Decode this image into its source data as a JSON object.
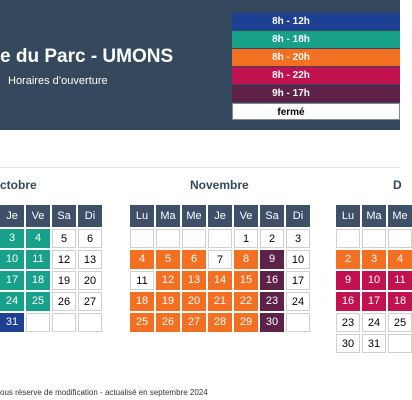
{
  "header": {
    "title": "e du Parc - UMONS",
    "subtitle": "Horaires d’ouverture"
  },
  "legend": [
    {
      "label": "8h - 12h",
      "color": "#1d3f94"
    },
    {
      "label": "8h - 18h",
      "color": "#17a08a"
    },
    {
      "label": "8h - 20h",
      "color": "#f36f21"
    },
    {
      "label": "8h - 22h",
      "color": "#c1124f"
    },
    {
      "label": "9h - 17h",
      "color": "#5e2148"
    },
    {
      "label": "fermé",
      "color": "#ffffff"
    }
  ],
  "months": [
    {
      "name": "ctobre",
      "day_headers": [
        "Je",
        "Ve",
        "Sa",
        "Di"
      ],
      "weeks": [
        [
          {
            "day": "3",
            "color": "#17a08a"
          },
          {
            "day": "4",
            "color": "#17a08a"
          },
          {
            "day": "5",
            "color": "#ffffff"
          },
          {
            "day": "6",
            "color": "#ffffff"
          }
        ],
        [
          {
            "day": "10",
            "color": "#17a08a"
          },
          {
            "day": "11",
            "color": "#17a08a"
          },
          {
            "day": "12",
            "color": "#ffffff"
          },
          {
            "day": "13",
            "color": "#ffffff"
          }
        ],
        [
          {
            "day": "17",
            "color": "#17a08a"
          },
          {
            "day": "18",
            "color": "#17a08a"
          },
          {
            "day": "19",
            "color": "#ffffff"
          },
          {
            "day": "20",
            "color": "#ffffff"
          }
        ],
        [
          {
            "day": "24",
            "color": "#17a08a"
          },
          {
            "day": "25",
            "color": "#17a08a"
          },
          {
            "day": "26",
            "color": "#ffffff"
          },
          {
            "day": "27",
            "color": "#ffffff"
          }
        ],
        [
          {
            "day": "31",
            "color": "#1d3f94"
          },
          null,
          null,
          null
        ]
      ]
    },
    {
      "name": "Novembre",
      "day_headers": [
        "Lu",
        "Ma",
        "Me",
        "Je",
        "Ve",
        "Sa",
        "Di"
      ],
      "weeks": [
        [
          null,
          null,
          null,
          null,
          {
            "day": "1",
            "color": "#ffffff"
          },
          {
            "day": "2",
            "color": "#ffffff"
          },
          {
            "day": "3",
            "color": "#ffffff"
          }
        ],
        [
          {
            "day": "4",
            "color": "#f36f21"
          },
          {
            "day": "5",
            "color": "#f36f21"
          },
          {
            "day": "6",
            "color": "#f36f21"
          },
          {
            "day": "7",
            "color": "#ffffff"
          },
          {
            "day": "8",
            "color": "#f36f21"
          },
          {
            "day": "9",
            "color": "#5e2148"
          },
          {
            "day": "10",
            "color": "#ffffff"
          }
        ],
        [
          {
            "day": "11",
            "color": "#ffffff"
          },
          {
            "day": "12",
            "color": "#f36f21"
          },
          {
            "day": "13",
            "color": "#f36f21"
          },
          {
            "day": "14",
            "color": "#f36f21"
          },
          {
            "day": "15",
            "color": "#f36f21"
          },
          {
            "day": "16",
            "color": "#5e2148"
          },
          {
            "day": "17",
            "color": "#ffffff"
          }
        ],
        [
          {
            "day": "18",
            "color": "#f36f21"
          },
          {
            "day": "19",
            "color": "#f36f21"
          },
          {
            "day": "20",
            "color": "#f36f21"
          },
          {
            "day": "21",
            "color": "#f36f21"
          },
          {
            "day": "22",
            "color": "#f36f21"
          },
          {
            "day": "23",
            "color": "#5e2148"
          },
          {
            "day": "24",
            "color": "#ffffff"
          }
        ],
        [
          {
            "day": "25",
            "color": "#f36f21"
          },
          {
            "day": "26",
            "color": "#f36f21"
          },
          {
            "day": "27",
            "color": "#f36f21"
          },
          {
            "day": "28",
            "color": "#f36f21"
          },
          {
            "day": "29",
            "color": "#f36f21"
          },
          {
            "day": "30",
            "color": "#5e2148"
          },
          null
        ]
      ]
    },
    {
      "name": "D",
      "day_headers": [
        "Lu",
        "Ma",
        "Me"
      ],
      "weeks": [
        [
          null,
          null,
          null
        ],
        [
          {
            "day": "2",
            "color": "#f36f21"
          },
          {
            "day": "3",
            "color": "#f36f21"
          },
          {
            "day": "4",
            "color": "#f36f21"
          }
        ],
        [
          {
            "day": "9",
            "color": "#c1124f"
          },
          {
            "day": "10",
            "color": "#c1124f"
          },
          {
            "day": "11",
            "color": "#c1124f"
          }
        ],
        [
          {
            "day": "16",
            "color": "#c1124f"
          },
          {
            "day": "17",
            "color": "#c1124f"
          },
          {
            "day": "18",
            "color": "#c1124f"
          }
        ],
        [
          {
            "day": "23",
            "color": "#ffffff"
          },
          {
            "day": "24",
            "color": "#ffffff"
          },
          {
            "day": "25",
            "color": "#ffffff"
          }
        ],
        [
          {
            "day": "30",
            "color": "#ffffff"
          },
          {
            "day": "31",
            "color": "#ffffff"
          },
          null
        ]
      ]
    }
  ],
  "footer": "ous réserve de modification - actualisé en septembre 2024"
}
